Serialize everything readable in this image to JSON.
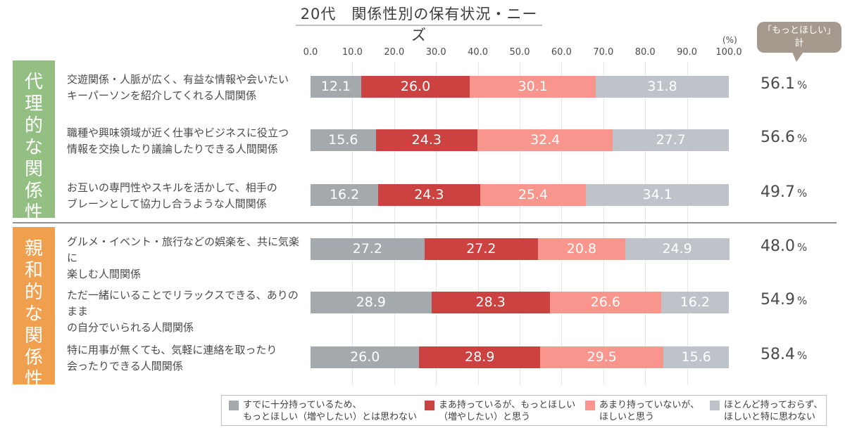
{
  "chart_data": {
    "type": "bar",
    "orientation": "horizontal",
    "stacked": true,
    "title": "20代　関係性別の保有状況・ニーズ",
    "unit_label": "(%)",
    "xlim": [
      0,
      100
    ],
    "xticks": [
      "0.0",
      "10.0",
      "20.0",
      "30.0",
      "40.0",
      "50.0",
      "60.0",
      "70.0",
      "80.0",
      "90.0",
      "100.0"
    ],
    "grid": true,
    "legend_position": "bottom",
    "series": [
      {
        "name": "すでに十分持っているため、もっとほしい（増やしたい）とは思わない",
        "color": "#a3a9ad"
      },
      {
        "name": "まあ持っているが、もっとほしい（増やしたい）と思う",
        "color": "#cb4240"
      },
      {
        "name": "あまり持っていないが、ほしいと思う",
        "color": "#f8968d"
      },
      {
        "name": "ほとんど持っておらず、ほしいと特に思わない",
        "color": "#bdc3c9"
      }
    ],
    "groups": [
      {
        "name": "代理的な関係性",
        "color": "#93bf83",
        "rows": [
          {
            "label_lines": [
              "交遊関係・人脈が広く、有益な情報や会いたい",
              "キーパーソンを紹介してくれる人間関係"
            ],
            "values": [
              12.1,
              26.0,
              30.1,
              31.8
            ],
            "total": "56.1"
          },
          {
            "label_lines": [
              "職種や興味領域が近く仕事やビジネスに役立つ",
              "情報を交換したり議論したりできる人間関係"
            ],
            "values": [
              15.6,
              24.3,
              32.4,
              27.7
            ],
            "total": "56.6"
          },
          {
            "label_lines": [
              "お互いの専門性やスキルを活かして、相手の",
              "ブレーンとして協力し合うような人間関係"
            ],
            "values": [
              16.2,
              24.3,
              25.4,
              34.1
            ],
            "total": "49.7"
          }
        ]
      },
      {
        "name": "親和的な関係性",
        "color": "#ef9f4d",
        "rows": [
          {
            "label_lines": [
              "グルメ・イベント・旅行などの娯楽を、共に気楽に",
              "楽しむ人間関係"
            ],
            "values": [
              27.2,
              27.2,
              20.8,
              24.9
            ],
            "total": "48.0"
          },
          {
            "label_lines": [
              "ただ一緒にいることでリラックスできる、ありのまま",
              "の自分でいられる人間関係"
            ],
            "values": [
              28.9,
              28.3,
              26.6,
              16.2
            ],
            "total": "54.9"
          },
          {
            "label_lines": [
              "特に用事が無くても、気軽に連絡を取ったり",
              "会ったりできる人間関係"
            ],
            "values": [
              26.0,
              28.9,
              29.5,
              15.6
            ],
            "total": "58.4"
          }
        ]
      }
    ],
    "totals_header": [
      "「もっとほしい」",
      "計"
    ],
    "totals_unit": "%"
  },
  "legend": [
    {
      "lines": [
        "すでに十分持っているため、",
        "もっとほしい（増やしたい）とは思わない"
      ]
    },
    {
      "lines": [
        "まあ持っているが、もっとほしい",
        "（増やしたい）と思う"
      ]
    },
    {
      "lines": [
        "あまり持っていないが、",
        "ほしいと思う"
      ]
    },
    {
      "lines": [
        "ほとんど持っておらず、",
        "ほしいと特に思わない"
      ]
    }
  ]
}
